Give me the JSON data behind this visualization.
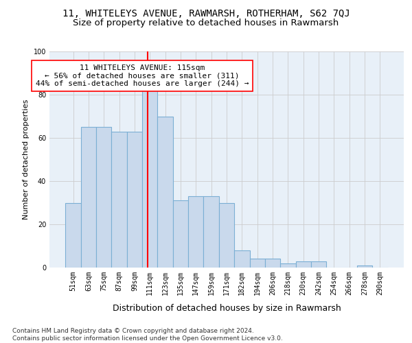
{
  "title": "11, WHITELEYS AVENUE, RAWMARSH, ROTHERHAM, S62 7QJ",
  "subtitle": "Size of property relative to detached houses in Rawmarsh",
  "xlabel": "Distribution of detached houses by size in Rawmarsh",
  "ylabel": "Number of detached properties",
  "bar_labels": [
    "51sqm",
    "63sqm",
    "75sqm",
    "87sqm",
    "99sqm",
    "111sqm",
    "123sqm",
    "135sqm",
    "147sqm",
    "159sqm",
    "171sqm",
    "182sqm",
    "194sqm",
    "206sqm",
    "218sqm",
    "230sqm",
    "242sqm",
    "254sqm",
    "266sqm",
    "278sqm",
    "290sqm"
  ],
  "bar_values": [
    30,
    65,
    65,
    63,
    63,
    85,
    70,
    31,
    33,
    33,
    30,
    8,
    4,
    4,
    2,
    3,
    3,
    0,
    0,
    1,
    0
  ],
  "bar_color": "#c9d9ec",
  "bar_edgecolor": "#7bafd4",
  "bar_linewidth": 0.8,
  "highlight_line_color": "red",
  "annotation_text": "11 WHITELEYS AVENUE: 115sqm\n← 56% of detached houses are smaller (311)\n44% of semi-detached houses are larger (244) →",
  "annotation_box_color": "white",
  "annotation_box_edgecolor": "red",
  "grid_color": "#cccccc",
  "background_color": "#e8f0f8",
  "ylim": [
    0,
    100
  ],
  "yticks": [
    0,
    20,
    40,
    60,
    80,
    100
  ],
  "footer_text": "Contains HM Land Registry data © Crown copyright and database right 2024.\nContains public sector information licensed under the Open Government Licence v3.0.",
  "title_fontsize": 10,
  "subtitle_fontsize": 9.5,
  "xlabel_fontsize": 9,
  "ylabel_fontsize": 8,
  "tick_fontsize": 7,
  "annotation_fontsize": 8,
  "footer_fontsize": 6.5
}
